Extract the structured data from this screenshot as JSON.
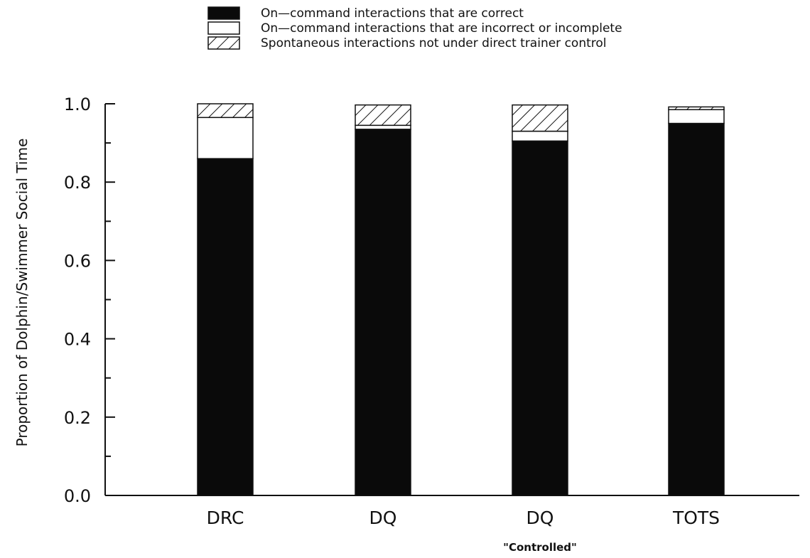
{
  "chart_data": {
    "type": "bar",
    "stacked": true,
    "categories": [
      "DRC",
      "DQ",
      "DQ",
      "TOTS"
    ],
    "series": [
      {
        "name": "On—command interactions that are correct",
        "values": [
          0.86,
          0.935,
          0.905,
          0.95
        ],
        "fill": "solid-black"
      },
      {
        "name": "On—command interactions that are incorrect or incomplete",
        "values": [
          0.105,
          0.01,
          0.025,
          0.035
        ],
        "fill": "white"
      },
      {
        "name": "Spontaneous interactions not under direct trainer control",
        "values": [
          0.035,
          0.052,
          0.067,
          0.007
        ],
        "fill": "diagonal-hatch"
      }
    ],
    "yticks": [
      "0.0",
      "0.2",
      "0.4",
      "0.6",
      "0.8",
      "1.0"
    ],
    "ylabel": "Proportion of Dolphin/Swimmer Social Time",
    "xlabel": "",
    "ylim": [
      0,
      1.0
    ],
    "annotations": [
      {
        "text": "\"Controlled\"",
        "category_index": 2
      }
    ],
    "legend_position": "top-center",
    "grid": false,
    "colors": {
      "ink": "#111111",
      "bar_dark": "#0a0a0a",
      "paper": "#ffffff"
    }
  }
}
